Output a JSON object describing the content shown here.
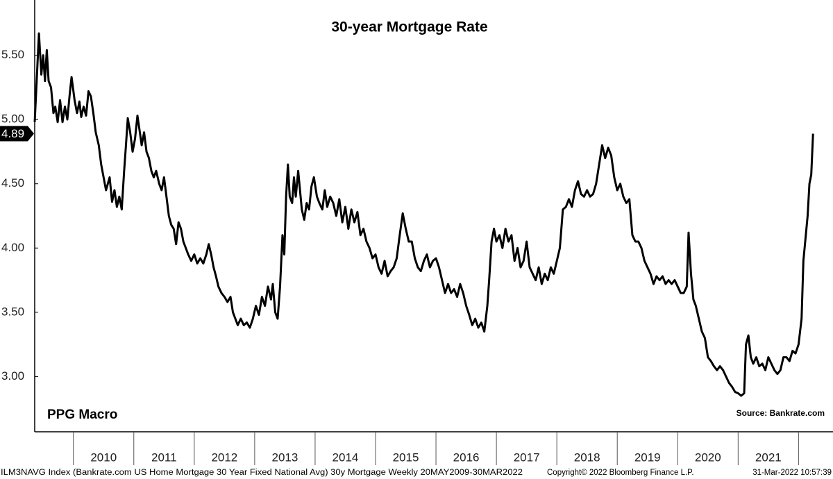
{
  "chart_data": {
    "type": "line",
    "title": "30-year Mortgage Rate",
    "watermark": "PPG Macro",
    "source": "Source: Bankrate.com",
    "footer_left": "ILM3NAVG Index (Bankrate.com US Home Mortgage 30 Year Fixed National Avg) 30y Mortgage  Weekly 20MAY2009-30MAR2022",
    "footer_copyright": "Copyright© 2022 Bloomberg Finance L.P.",
    "footer_timestamp": "31-Mar-2022 10:57:39",
    "xlim": [
      2009.36,
      2022.57
    ],
    "ylim": [
      2.57,
      5.93
    ],
    "xticks": [
      2010,
      2011,
      2012,
      2013,
      2014,
      2015,
      2016,
      2017,
      2018,
      2019,
      2020,
      2021,
      2022
    ],
    "xtick_labels": [
      {
        "value": 2010.5,
        "label": "2010"
      },
      {
        "value": 2011.5,
        "label": "2011"
      },
      {
        "value": 2012.5,
        "label": "2012"
      },
      {
        "value": 2013.5,
        "label": "2013"
      },
      {
        "value": 2014.5,
        "label": "2014"
      },
      {
        "value": 2015.5,
        "label": "2015"
      },
      {
        "value": 2016.5,
        "label": "2016"
      },
      {
        "value": 2017.5,
        "label": "2017"
      },
      {
        "value": 2018.5,
        "label": "2018"
      },
      {
        "value": 2019.5,
        "label": "2019"
      },
      {
        "value": 2020.5,
        "label": "2020"
      },
      {
        "value": 2021.5,
        "label": "2021"
      }
    ],
    "yticks": [
      {
        "value": 3,
        "label": "3.00"
      },
      {
        "value": 3.5,
        "label": "3.50"
      },
      {
        "value": 4,
        "label": "4.00"
      },
      {
        "value": 4.5,
        "label": "4.50"
      },
      {
        "value": 5,
        "label": "5.00"
      },
      {
        "value": 5.5,
        "label": "5.50"
      }
    ],
    "color": "#000000",
    "x": [
      2009.36,
      2009.43,
      2009.47,
      2009.5,
      2009.53,
      2009.56,
      2009.59,
      2009.63,
      2009.67,
      2009.7,
      2009.74,
      2009.78,
      2009.82,
      2009.86,
      2009.9,
      2009.94,
      2009.97,
      2010.02,
      2010.06,
      2010.1,
      2010.13,
      2010.17,
      2010.21,
      2010.25,
      2010.29,
      2010.33,
      2010.37,
      2010.42,
      2010.46,
      2010.5,
      2010.54,
      2010.6,
      2010.64,
      2010.68,
      2010.72,
      2010.76,
      2010.8,
      2010.84,
      2010.87,
      2010.9,
      2010.94,
      2010.98,
      2011.02,
      2011.06,
      2011.1,
      2011.13,
      2011.17,
      2011.21,
      2011.25,
      2011.29,
      2011.33,
      2011.37,
      2011.42,
      2011.46,
      2011.5,
      2011.54,
      2011.58,
      2011.62,
      2011.66,
      2011.7,
      2011.74,
      2011.78,
      2011.82,
      2011.86,
      2011.9,
      2011.95,
      2012.0,
      2012.05,
      2012.1,
      2012.15,
      2012.2,
      2012.24,
      2012.28,
      2012.32,
      2012.36,
      2012.4,
      2012.45,
      2012.5,
      2012.55,
      2012.6,
      2012.64,
      2012.68,
      2012.72,
      2012.77,
      2012.82,
      2012.87,
      2012.92,
      2012.97,
      2013.02,
      2013.07,
      2013.12,
      2013.17,
      2013.22,
      2013.27,
      2013.3,
      2013.34,
      2013.38,
      2013.42,
      2013.46,
      2013.49,
      2013.52,
      2013.55,
      2013.58,
      2013.62,
      2013.65,
      2013.68,
      2013.72,
      2013.75,
      2013.78,
      2013.82,
      2013.86,
      2013.9,
      2013.94,
      2013.98,
      2014.03,
      2014.07,
      2014.12,
      2014.16,
      2014.2,
      2014.25,
      2014.3,
      2014.35,
      2014.4,
      2014.45,
      2014.5,
      2014.55,
      2014.6,
      2014.65,
      2014.7,
      2014.75,
      2014.8,
      2014.85,
      2014.9,
      2014.95,
      2015.0,
      2015.05,
      2015.1,
      2015.15,
      2015.2,
      2015.25,
      2015.3,
      2015.35,
      2015.4,
      2015.45,
      2015.5,
      2015.55,
      2015.6,
      2015.65,
      2015.7,
      2015.75,
      2015.8,
      2015.85,
      2015.9,
      2015.95,
      2016.0,
      2016.05,
      2016.1,
      2016.15,
      2016.2,
      2016.25,
      2016.3,
      2016.35,
      2016.4,
      2016.45,
      2016.5,
      2016.55,
      2016.6,
      2016.65,
      2016.7,
      2016.75,
      2016.8,
      2016.85,
      2016.88,
      2016.92,
      2016.96,
      2017.0,
      2017.05,
      2017.1,
      2017.15,
      2017.2,
      2017.25,
      2017.3,
      2017.35,
      2017.4,
      2017.45,
      2017.5,
      2017.55,
      2017.6,
      2017.65,
      2017.7,
      2017.75,
      2017.8,
      2017.85,
      2017.9,
      2017.95,
      2018.0,
      2018.05,
      2018.1,
      2018.15,
      2018.2,
      2018.25,
      2018.3,
      2018.35,
      2018.4,
      2018.45,
      2018.5,
      2018.55,
      2018.6,
      2018.65,
      2018.7,
      2018.75,
      2018.8,
      2018.85,
      2018.9,
      2018.95,
      2019.0,
      2019.05,
      2019.1,
      2019.15,
      2019.2,
      2019.25,
      2019.3,
      2019.35,
      2019.4,
      2019.45,
      2019.5,
      2019.55,
      2019.6,
      2019.65,
      2019.7,
      2019.75,
      2019.8,
      2019.85,
      2019.9,
      2019.95,
      2020.0,
      2020.05,
      2020.1,
      2020.15,
      2020.18,
      2020.22,
      2020.26,
      2020.3,
      2020.35,
      2020.4,
      2020.45,
      2020.5,
      2020.55,
      2020.6,
      2020.65,
      2020.7,
      2020.75,
      2020.8,
      2020.85,
      2020.9,
      2020.95,
      2021.0,
      2021.05,
      2021.1,
      2021.13,
      2021.17,
      2021.21,
      2021.25,
      2021.3,
      2021.35,
      2021.4,
      2021.45,
      2021.5,
      2021.55,
      2021.6,
      2021.65,
      2021.7,
      2021.75,
      2021.8,
      2021.85,
      2021.9,
      2021.95,
      2022.0,
      2022.05,
      2022.08,
      2022.12,
      2022.15,
      2022.18,
      2022.21,
      2022.24
    ],
    "values": [
      4.98,
      5.67,
      5.35,
      5.5,
      5.3,
      5.54,
      5.3,
      5.25,
      5.05,
      5.1,
      4.98,
      5.15,
      4.98,
      5.1,
      5.0,
      5.2,
      5.33,
      5.15,
      5.05,
      5.14,
      5.02,
      5.1,
      5.03,
      5.22,
      5.18,
      5.05,
      4.9,
      4.8,
      4.65,
      4.55,
      4.45,
      4.55,
      4.36,
      4.45,
      4.32,
      4.4,
      4.3,
      4.6,
      4.8,
      5.01,
      4.9,
      4.75,
      4.85,
      5.03,
      4.9,
      4.8,
      4.9,
      4.75,
      4.7,
      4.6,
      4.55,
      4.6,
      4.5,
      4.45,
      4.55,
      4.4,
      4.25,
      4.18,
      4.15,
      4.03,
      4.2,
      4.15,
      4.05,
      4.0,
      3.95,
      3.9,
      3.95,
      3.88,
      3.92,
      3.88,
      3.95,
      4.03,
      3.95,
      3.85,
      3.78,
      3.7,
      3.65,
      3.62,
      3.58,
      3.62,
      3.5,
      3.45,
      3.4,
      3.45,
      3.4,
      3.42,
      3.38,
      3.45,
      3.55,
      3.48,
      3.62,
      3.55,
      3.7,
      3.6,
      3.72,
      3.5,
      3.45,
      3.7,
      4.1,
      3.95,
      4.4,
      4.65,
      4.4,
      4.35,
      4.55,
      4.4,
      4.6,
      4.45,
      4.3,
      4.22,
      4.35,
      4.3,
      4.48,
      4.55,
      4.4,
      4.35,
      4.3,
      4.45,
      4.32,
      4.4,
      4.35,
      4.25,
      4.38,
      4.2,
      4.32,
      4.15,
      4.3,
      4.2,
      4.28,
      4.1,
      4.15,
      4.05,
      4.0,
      3.92,
      3.95,
      3.85,
      3.8,
      3.9,
      3.78,
      3.82,
      3.85,
      3.92,
      4.1,
      4.27,
      4.15,
      4.05,
      4.05,
      3.92,
      3.85,
      3.82,
      3.9,
      3.95,
      3.85,
      3.9,
      3.92,
      3.85,
      3.75,
      3.65,
      3.72,
      3.65,
      3.68,
      3.62,
      3.72,
      3.65,
      3.55,
      3.48,
      3.4,
      3.45,
      3.38,
      3.42,
      3.35,
      3.55,
      3.75,
      4.05,
      4.15,
      4.05,
      4.1,
      4.0,
      4.15,
      4.05,
      4.1,
      3.9,
      4.0,
      3.85,
      3.9,
      4.05,
      3.85,
      3.8,
      3.75,
      3.85,
      3.72,
      3.8,
      3.75,
      3.85,
      3.8,
      3.9,
      4.0,
      4.3,
      4.32,
      4.38,
      4.32,
      4.45,
      4.52,
      4.42,
      4.4,
      4.45,
      4.4,
      4.42,
      4.5,
      4.65,
      4.8,
      4.7,
      4.78,
      4.72,
      4.55,
      4.45,
      4.5,
      4.4,
      4.35,
      4.38,
      4.1,
      4.05,
      4.05,
      4.0,
      3.9,
      3.85,
      3.8,
      3.72,
      3.78,
      3.75,
      3.78,
      3.72,
      3.75,
      3.72,
      3.75,
      3.7,
      3.65,
      3.65,
      3.7,
      4.12,
      3.8,
      3.6,
      3.55,
      3.45,
      3.35,
      3.3,
      3.15,
      3.12,
      3.08,
      3.05,
      3.08,
      3.05,
      3.0,
      2.95,
      2.92,
      2.88,
      2.87,
      2.85,
      2.87,
      3.25,
      3.32,
      3.15,
      3.1,
      3.15,
      3.08,
      3.1,
      3.05,
      3.15,
      3.1,
      3.05,
      3.02,
      3.05,
      3.15,
      3.15,
      3.12,
      3.2,
      3.18,
      3.25,
      3.45,
      3.9,
      4.1,
      4.25,
      4.5,
      4.57,
      4.89
    ]
  }
}
